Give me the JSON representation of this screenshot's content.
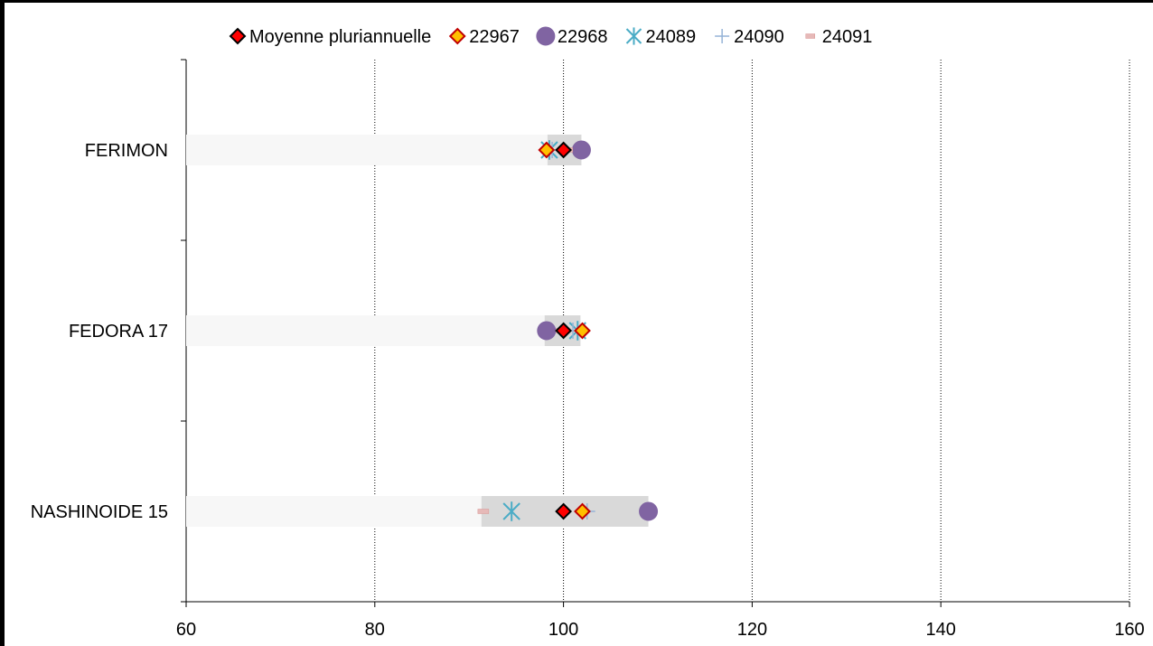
{
  "chart_data": {
    "type": "scatter",
    "orientation": "horizontal",
    "categories": [
      "FERIMON",
      "FEDORA 17",
      "NASHINOIDE 15"
    ],
    "xlim": [
      60,
      160
    ],
    "xticks": [
      60,
      80,
      100,
      120,
      140,
      160
    ],
    "x_tick_labels": [
      "60",
      "80",
      "100",
      "120",
      "140",
      "160"
    ],
    "grid": "vertical dotted",
    "legend_position": "top",
    "range_bars": [
      {
        "category": "FERIMON",
        "min": 98.3,
        "max": 101.9
      },
      {
        "category": "FEDORA 17",
        "min": 98.0,
        "max": 101.8
      },
      {
        "category": "NASHINOIDE 15",
        "min": 91.3,
        "max": 109.0
      }
    ],
    "series": [
      {
        "name": "Moyenne pluriannuelle",
        "marker": "diamond",
        "color": "#ff0000",
        "edge": "#000000",
        "values": [
          100,
          100,
          100
        ]
      },
      {
        "name": "22967",
        "marker": "diamond",
        "color": "#ffc000",
        "edge": "#c00000",
        "values": [
          98.2,
          102.0,
          102.0
        ]
      },
      {
        "name": "22968",
        "marker": "circle",
        "color": "#8064a2",
        "edge": "#8064a2",
        "values": [
          101.9,
          98.2,
          109.0
        ]
      },
      {
        "name": "24089",
        "marker": "asterisk",
        "color": "#4bacc6",
        "edge": "#4bacc6",
        "values": [
          98.5,
          101.5,
          94.5
        ]
      },
      {
        "name": "24090",
        "marker": "plus",
        "color": "#95b3d7",
        "edge": "#95b3d7",
        "values": [
          98.8,
          101.0,
          102.5
        ]
      },
      {
        "name": "24091",
        "marker": "dash",
        "color": "#e6b9b8",
        "edge": "#d99694",
        "values": [
          100.4,
          99.8,
          91.5
        ]
      }
    ]
  }
}
